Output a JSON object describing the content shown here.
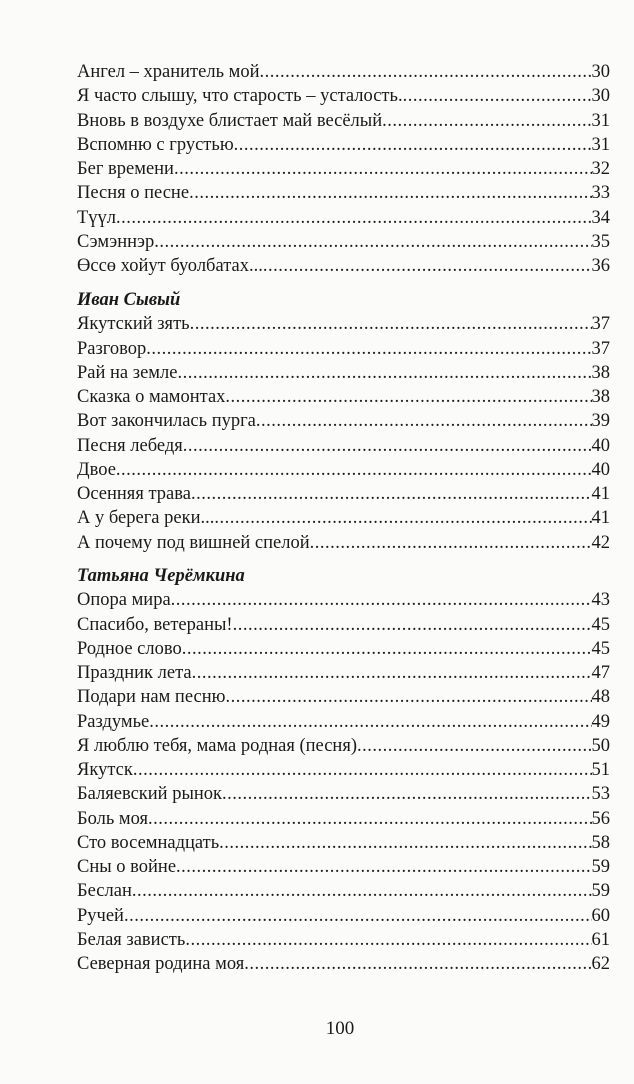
{
  "sections": [
    {
      "author": "",
      "entries": [
        {
          "title": "Ангел – хранитель мой ",
          "page": "30"
        },
        {
          "title": "Я часто слышу, что старость – усталость. ",
          "page": "30"
        },
        {
          "title": "Вновь в воздухе блистает май весёлый",
          "page": "31"
        },
        {
          "title": "Вспомню с грустью",
          "page": "31"
        },
        {
          "title": "Бег времени",
          "page": "32"
        },
        {
          "title": "Песня о песне",
          "page": "33"
        },
        {
          "title": "Түүл ",
          "page": "34"
        },
        {
          "title": "Сэмэннэр",
          "page": "35"
        },
        {
          "title": "Өссө хойут буолбатах... ",
          "page": "36"
        }
      ]
    },
    {
      "author": "Иван Сывый",
      "entries": [
        {
          "title": "Якутский зять ",
          "page": "37"
        },
        {
          "title": "Разговор",
          "page": "37"
        },
        {
          "title": "Рай на земле",
          "page": "38"
        },
        {
          "title": "Сказка о мамонтах",
          "page": "38"
        },
        {
          "title": "Вот закончилась пурга",
          "page": "39"
        },
        {
          "title": "Песня лебедя",
          "page": "40"
        },
        {
          "title": "Двое ",
          "page": "40"
        },
        {
          "title": "Осенняя трава ",
          "page": "41"
        },
        {
          "title": "А у берега реки... ",
          "page": "41"
        },
        {
          "title": "А почему под вишней спелой ",
          "page": "42"
        }
      ]
    },
    {
      "author": "Татьяна Черёмкина",
      "entries": [
        {
          "title": "Опора мира ",
          "page": "43"
        },
        {
          "title": "Спасибо, ветераны! ",
          "page": "45"
        },
        {
          "title": "Родное слово",
          "page": "45"
        },
        {
          "title": "Праздник лета",
          "page": "47"
        },
        {
          "title": "Подари нам песню",
          "page": "48"
        },
        {
          "title": "Раздумье",
          "page": "49"
        },
        {
          "title": "Я люблю тебя, мама родная (песня) ",
          "page": "50"
        },
        {
          "title": "Якутск",
          "page": "51"
        },
        {
          "title": "Баляевский рынок ",
          "page": "53"
        },
        {
          "title": "Боль моя ",
          "page": "56"
        },
        {
          "title": "Сто восемнадцать",
          "page": "58"
        },
        {
          "title": "Сны о войне ",
          "page": "59"
        },
        {
          "title": "Беслан",
          "page": "59"
        },
        {
          "title": "Ручей ",
          "page": "60"
        },
        {
          "title": "Белая зависть ",
          "page": "61"
        },
        {
          "title": "Северная родина моя ",
          "page": "62"
        }
      ]
    }
  ],
  "page_number": "100"
}
